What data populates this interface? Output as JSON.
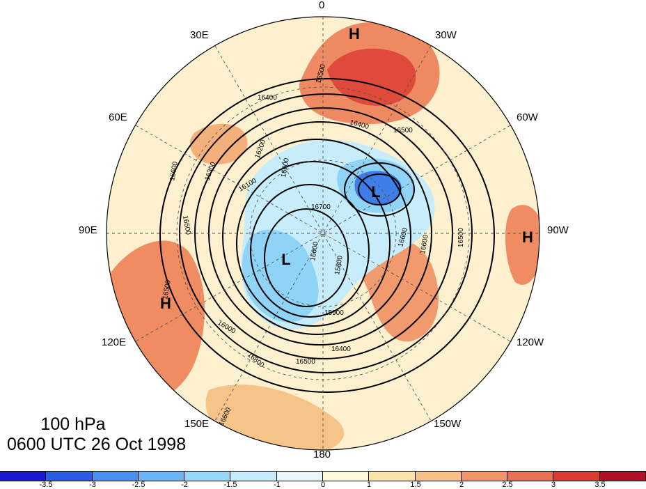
{
  "title": {
    "level": "100 hPa",
    "time": "0600 UTC 26 Oct 1998"
  },
  "longitude_labels": [
    {
      "id": "lon-0",
      "text": "0"
    },
    {
      "id": "lon-30w",
      "text": "30W"
    },
    {
      "id": "lon-60w",
      "text": "60W"
    },
    {
      "id": "lon-90w",
      "text": "90W"
    },
    {
      "id": "lon-120w",
      "text": "120W"
    },
    {
      "id": "lon-150w",
      "text": "150W"
    },
    {
      "id": "lon-180",
      "text": "180"
    },
    {
      "id": "lon-150e",
      "text": "150E"
    },
    {
      "id": "lon-120e",
      "text": "120E"
    },
    {
      "id": "lon-90e",
      "text": "90E"
    },
    {
      "id": "lon-60e",
      "text": "60E"
    },
    {
      "id": "lon-30e",
      "text": "30E"
    }
  ],
  "pressure_centers": [
    {
      "id": "high-north-atlantic",
      "type": "H"
    },
    {
      "id": "high-east-pacific",
      "type": "H"
    },
    {
      "id": "high-east-asia",
      "type": "H"
    },
    {
      "id": "low-siberia",
      "type": "L"
    },
    {
      "id": "low-canada",
      "type": "L"
    }
  ],
  "contour_labels": [
    "16500",
    "16400",
    "16500",
    "16400",
    "16500",
    "16300",
    "16200",
    "16000",
    "16100",
    "16700",
    "15800",
    "16600",
    "15900",
    "16400",
    "16500",
    "16600",
    "16500",
    "16600",
    "16800",
    "16600",
    "16600",
    "16500",
    "16000"
  ],
  "colorbar": {
    "ticks": [
      "-3.5",
      "-3",
      "-2.5",
      "-2",
      "-1.5",
      "-1",
      "0",
      "1",
      "1.5",
      "2",
      "2.5",
      "3",
      "3.5"
    ],
    "colors": [
      "#1a1ad6",
      "#2a5be8",
      "#4a8ff0",
      "#6cb4f6",
      "#97d7fa",
      "#c4ecfb",
      "#e8f7fb",
      "#fff9dc",
      "#fbe3a8",
      "#f6c087",
      "#f2966a",
      "#ea6e50",
      "#e03a30",
      "#b40f26"
    ]
  }
}
